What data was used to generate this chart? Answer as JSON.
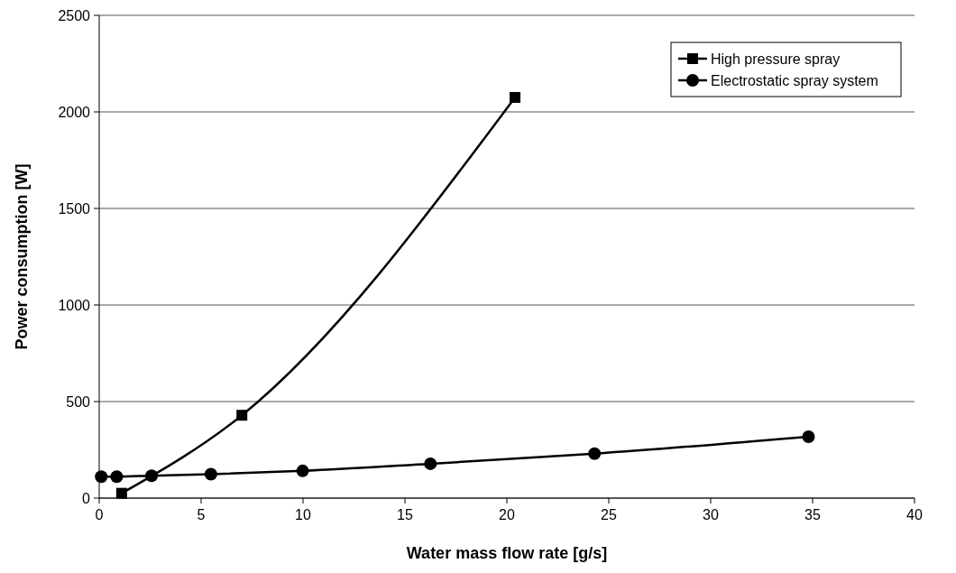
{
  "chart_data": {
    "type": "line",
    "xlabel": "Water mass flow rate [g/s]",
    "ylabel": "Power consumption [W]",
    "xlim": [
      0,
      40
    ],
    "xticks": [
      0,
      5,
      10,
      15,
      20,
      25,
      30,
      35,
      40
    ],
    "ylim": [
      0,
      2500
    ],
    "yticks": [
      0,
      500,
      1000,
      1500,
      2000,
      2500
    ],
    "grid": "y",
    "legend": "top right",
    "line_style": "solid",
    "series": [
      {
        "name": "High pressure spray",
        "color": "#000000",
        "marker": "square",
        "x": [
          1.1,
          7.0,
          20.4
        ],
        "values": [
          25,
          429,
          2075
        ]
      },
      {
        "name": "Electrostatic spray system",
        "color": "#000000",
        "marker": "circle",
        "x": [
          0.1,
          0.86,
          2.57,
          5.48,
          9.98,
          16.25,
          24.3,
          34.8
        ],
        "values": [
          111,
          111,
          116,
          124,
          141,
          178,
          230,
          318
        ]
      }
    ]
  }
}
